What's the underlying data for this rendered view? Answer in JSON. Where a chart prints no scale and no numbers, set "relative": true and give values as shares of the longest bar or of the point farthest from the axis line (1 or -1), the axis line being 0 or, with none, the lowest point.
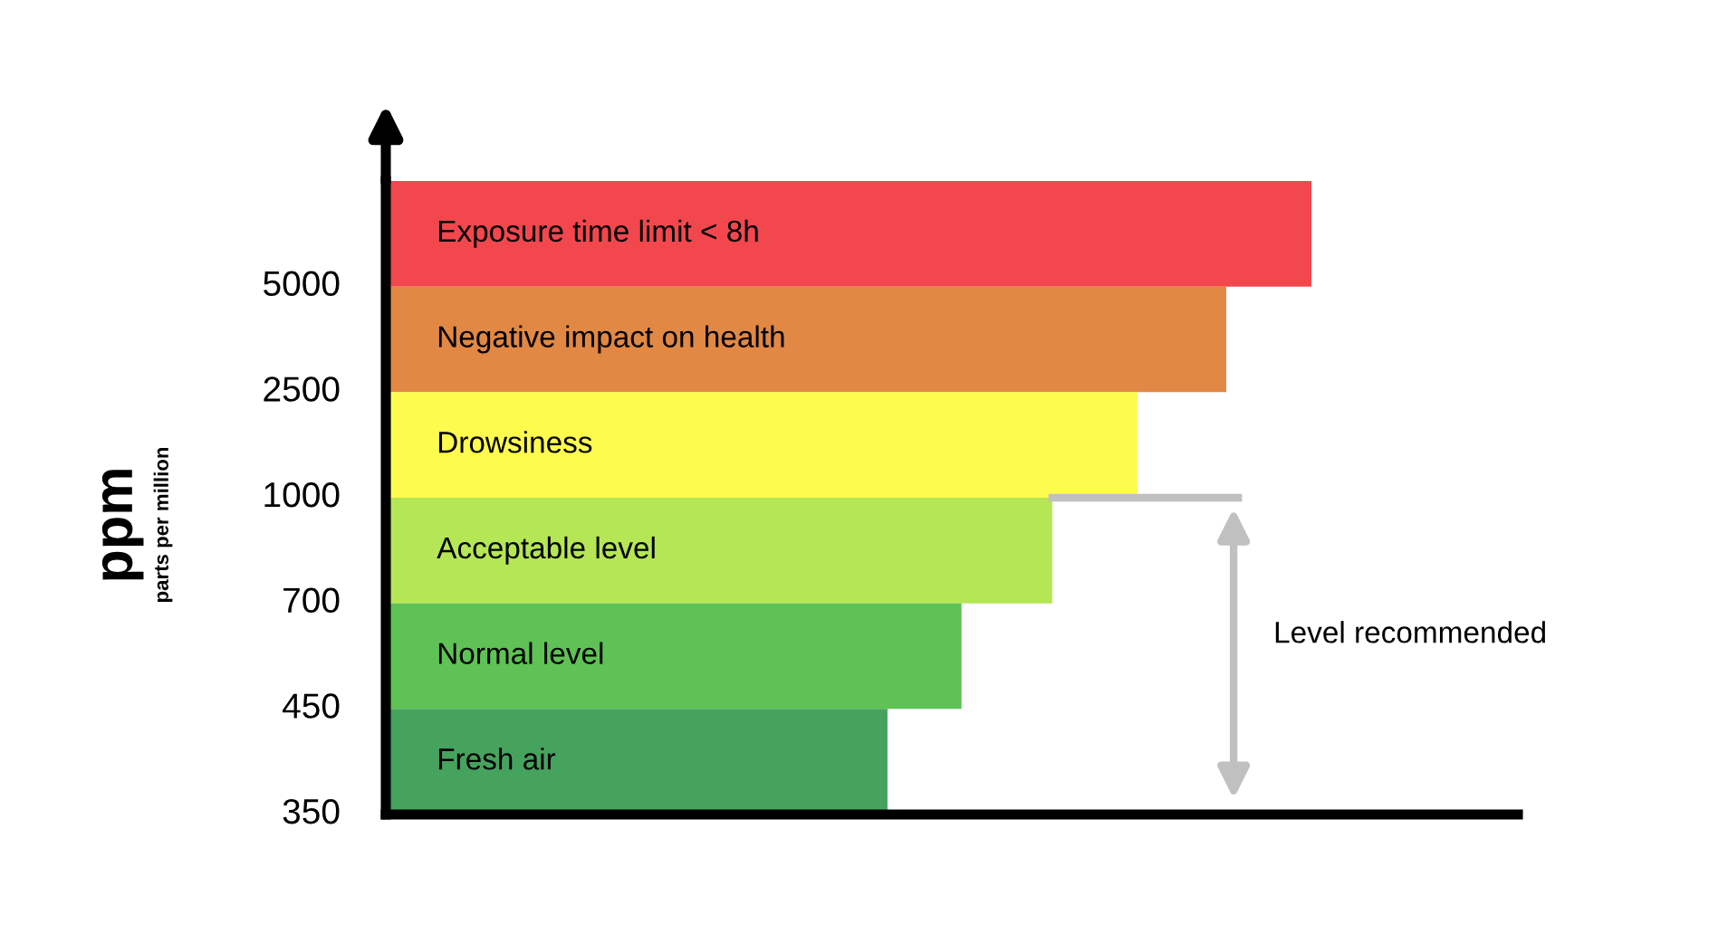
{
  "chart_data": {
    "type": "bar",
    "orientation": "horizontal",
    "relative": true,
    "categories": [
      "Exposure time limit < 8h",
      "Negative impact on health",
      "Drowsiness",
      "Acceptable level",
      "Normal level",
      "Fresh air"
    ],
    "values": [
      1,
      0.908,
      0.812,
      0.72,
      0.622,
      0.542
    ],
    "colors": [
      "#f2474d",
      "#e08844",
      "#fdfb4e",
      "#b5e655",
      "#5ec254",
      "#46a35e"
    ],
    "ylabel": "ppm",
    "annotations": [
      "350",
      "450",
      "700",
      "1000",
      "2500",
      "5000",
      "Level recommended",
      "parts per million"
    ],
    "legend": false
  }
}
